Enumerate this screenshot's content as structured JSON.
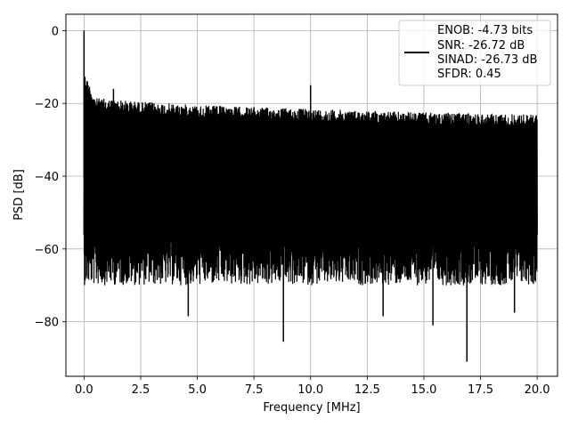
{
  "chart_data": {
    "type": "line",
    "title": "",
    "xlabel": "Frequency [MHz]",
    "ylabel": "PSD [dB]",
    "xlim": [
      -0.8,
      20.9
    ],
    "ylim": [
      -95,
      4.5
    ],
    "xticks": [
      0.0,
      2.5,
      5.0,
      7.5,
      10.0,
      12.5,
      15.0,
      17.5,
      20.0
    ],
    "xtick_labels": [
      "0.0",
      "2.5",
      "5.0",
      "7.5",
      "10.0",
      "12.5",
      "15.0",
      "17.5",
      "20.0"
    ],
    "yticks": [
      0,
      -20,
      -40,
      -60,
      -80
    ],
    "ytick_labels": [
      "0",
      "−20",
      "−40",
      "−60",
      "−80"
    ],
    "grid": true,
    "legend_position": "top-right",
    "legend_lines": [
      "ENOB: -4.73 bits",
      "SNR: -26.72 dB",
      "SINAD: -26.73 dB",
      "SFDR: 0.45"
    ],
    "series": [
      {
        "color": "#000000",
        "x_range": [
          0,
          20
        ],
        "noise_band_upper": [
          {
            "x": 0.05,
            "y": -12
          },
          {
            "x": 0.5,
            "y": -18.5
          },
          {
            "x": 2.5,
            "y": -19.5
          },
          {
            "x": 5.0,
            "y": -20.5
          },
          {
            "x": 10.0,
            "y": -21.5
          },
          {
            "x": 15.0,
            "y": -22.5
          },
          {
            "x": 20.0,
            "y": -23
          }
        ],
        "noise_band_lower_typical": -66,
        "peaks": [
          {
            "x": 0.0,
            "y": 0.0
          },
          {
            "x": 10.0,
            "y": -15.0
          },
          {
            "x": 1.3,
            "y": -16.0
          }
        ],
        "dips": [
          {
            "x": 4.6,
            "y": -78.5
          },
          {
            "x": 8.8,
            "y": -85.5
          },
          {
            "x": 13.2,
            "y": -78.5
          },
          {
            "x": 15.4,
            "y": -81.0
          },
          {
            "x": 16.9,
            "y": -91.0
          },
          {
            "x": 19.0,
            "y": -77.5
          }
        ]
      }
    ]
  }
}
